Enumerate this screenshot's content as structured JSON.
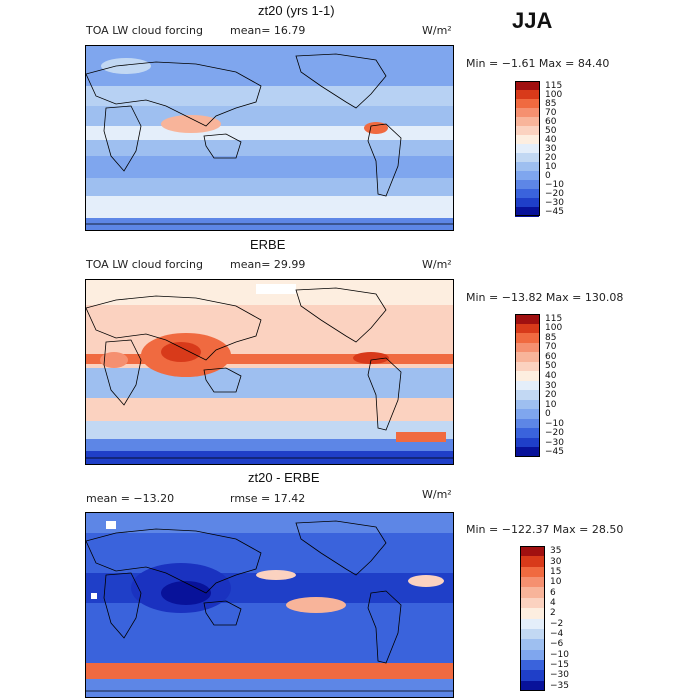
{
  "season_label": "JJA",
  "chart_data": [
    {
      "type": "heatmap",
      "title": "zt20 (yrs 1-1)",
      "field_label": "TOA LW cloud forcing",
      "stat1": "mean=  16.79",
      "stat2": "",
      "units": "W/m²",
      "minmax": "Min =  −1.61 Max =  84.40",
      "levels": [
        "115",
        "100",
        "85",
        "70",
        "60",
        "50",
        "40",
        "30",
        "20",
        "10",
        "0",
        "−10",
        "−20",
        "−30",
        "−45"
      ],
      "colors": [
        "#a01010",
        "#d83a1a",
        "#f06a40",
        "#f59070",
        "#f8b49a",
        "#fbd2c0",
        "#fdeee0",
        "#e4eefa",
        "#c2d8f3",
        "#9ebff0",
        "#7fa6ee",
        "#5d86e6",
        "#3a63dc",
        "#1f3fc8",
        "#08129a"
      ],
      "blob_color": "#f8b49a"
    },
    {
      "type": "heatmap",
      "title": "ERBE",
      "field_label": "TOA LW cloud forcing",
      "stat1": "mean=  29.99",
      "stat2": "",
      "units": "W/m²",
      "minmax": "Min = −13.82 Max = 130.08",
      "levels": [
        "115",
        "100",
        "85",
        "70",
        "60",
        "50",
        "40",
        "30",
        "20",
        "10",
        "0",
        "−10",
        "−20",
        "−30",
        "−45"
      ],
      "colors": [
        "#a01010",
        "#d83a1a",
        "#f06a40",
        "#f59070",
        "#f8b49a",
        "#fbd2c0",
        "#fdeee0",
        "#e4eefa",
        "#c2d8f3",
        "#9ebff0",
        "#7fa6ee",
        "#5d86e6",
        "#3a63dc",
        "#1f3fc8",
        "#08129a"
      ],
      "blob_color": "#f06a40"
    },
    {
      "type": "heatmap",
      "title": "zt20 - ERBE",
      "field_label": "",
      "stat1": "mean = −13.20",
      "stat2": "rmse =  17.42",
      "units": "W/m²",
      "minmax": "Min = −122.37 Max =  28.50",
      "levels": [
        "35",
        "30",
        "15",
        "10",
        "6",
        "4",
        "2",
        "−2",
        "−4",
        "−6",
        "−10",
        "−15",
        "−30",
        "−35"
      ],
      "colors": [
        "#a01010",
        "#d83a1a",
        "#f06a40",
        "#f59070",
        "#f8b49a",
        "#fbd2c0",
        "#fdeee0",
        "#e4eefa",
        "#c2d8f3",
        "#9ebff0",
        "#7fa6ee",
        "#3a63dc",
        "#1f3fc8",
        "#08129a"
      ],
      "blob_color": "#1a32c0"
    }
  ]
}
